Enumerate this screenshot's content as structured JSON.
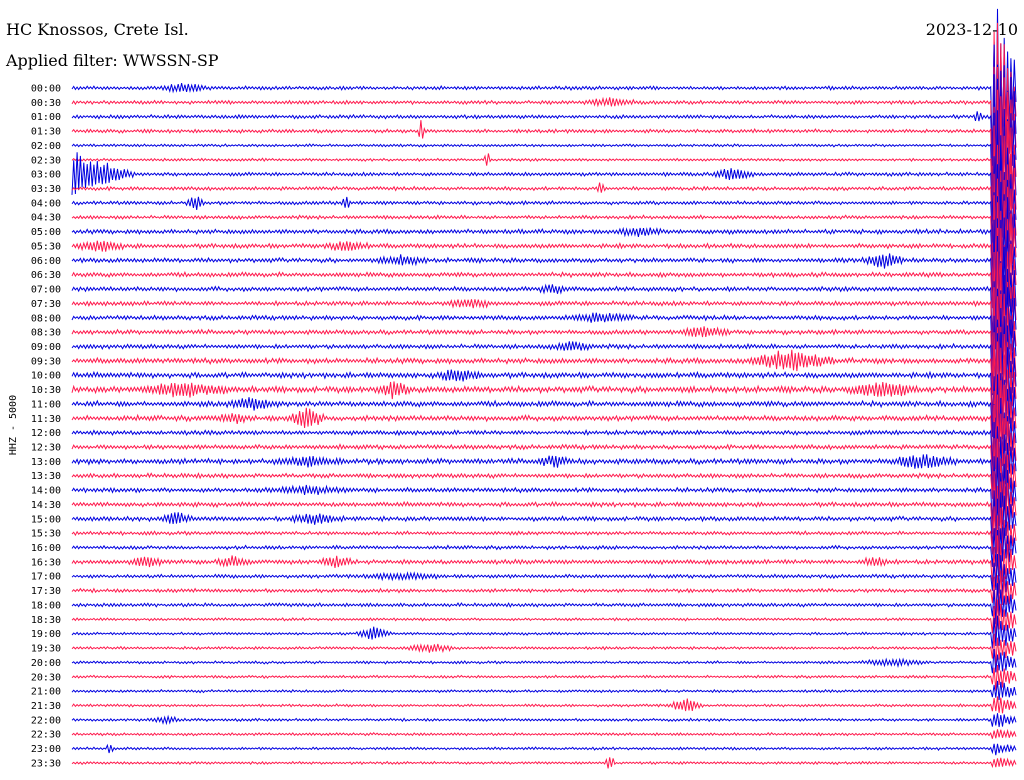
{
  "header": {
    "station": "HC Knossos, Crete Isl.",
    "filter": "Applied filter: WWSSN-SP",
    "date": "2023-12-10"
  },
  "chart_data": {
    "type": "line",
    "title": "",
    "ylabel": "HHZ - 5000",
    "colors": [
      "#0000e0",
      "#ff1a4d"
    ],
    "times": [
      "00:00",
      "00:30",
      "01:00",
      "01:30",
      "02:00",
      "02:30",
      "03:00",
      "03:30",
      "04:00",
      "04:30",
      "05:00",
      "05:30",
      "06:00",
      "06:30",
      "07:00",
      "07:30",
      "08:00",
      "08:30",
      "09:00",
      "09:30",
      "10:00",
      "10:30",
      "11:00",
      "11:30",
      "12:00",
      "12:30",
      "13:00",
      "13:30",
      "14:00",
      "14:30",
      "15:00",
      "15:30",
      "16:00",
      "16:30",
      "17:00",
      "17:30",
      "18:00",
      "18:30",
      "19:00",
      "19:30",
      "20:00",
      "20:30",
      "21:00",
      "21:30",
      "22:00",
      "22:30",
      "23:00",
      "23:30"
    ],
    "noise": [
      2,
      2,
      2,
      2,
      1.5,
      1.5,
      2,
      2,
      2,
      2,
      2.5,
      2.5,
      2.5,
      2.5,
      2.5,
      2.5,
      2.5,
      2.5,
      2.5,
      3,
      3,
      3.5,
      3,
      3,
      2.5,
      2.5,
      3,
      2.5,
      2.5,
      2.5,
      2.5,
      2,
      2,
      2.5,
      2,
      2,
      2,
      1.5,
      1.5,
      1.5,
      1.5,
      1.5,
      1.5,
      1.5,
      1.5,
      1.5,
      1.5,
      1.5
    ],
    "events": [
      {
        "row": 0,
        "t": 0.12,
        "amp": 4,
        "dur": 0.03
      },
      {
        "row": 1,
        "t": 0.57,
        "amp": 4,
        "dur": 0.03
      },
      {
        "row": 2,
        "t": 0.96,
        "amp": 8,
        "dur": 0.005
      },
      {
        "row": 3,
        "t": 0.37,
        "amp": 12,
        "dur": 0.004
      },
      {
        "row": 5,
        "t": 0.44,
        "amp": 8,
        "dur": 0.004
      },
      {
        "row": 6,
        "t": 0.0,
        "amp": 22,
        "dur": 0.07
      },
      {
        "row": 6,
        "t": 0.7,
        "amp": 6,
        "dur": 0.025
      },
      {
        "row": 7,
        "t": 0.56,
        "amp": 6,
        "dur": 0.005
      },
      {
        "row": 8,
        "t": 0.13,
        "amp": 8,
        "dur": 0.01
      },
      {
        "row": 8,
        "t": 0.29,
        "amp": 9,
        "dur": 0.005
      },
      {
        "row": 10,
        "t": 0.6,
        "amp": 4,
        "dur": 0.03
      },
      {
        "row": 11,
        "t": 0.03,
        "amp": 5,
        "dur": 0.03
      },
      {
        "row": 11,
        "t": 0.29,
        "amp": 4,
        "dur": 0.03
      },
      {
        "row": 12,
        "t": 0.35,
        "amp": 4,
        "dur": 0.03
      },
      {
        "row": 12,
        "t": 0.86,
        "amp": 7,
        "dur": 0.025
      },
      {
        "row": 14,
        "t": 0.51,
        "amp": 4,
        "dur": 0.02
      },
      {
        "row": 15,
        "t": 0.42,
        "amp": 4,
        "dur": 0.03
      },
      {
        "row": 16,
        "t": 0.56,
        "amp": 4,
        "dur": 0.04
      },
      {
        "row": 17,
        "t": 0.67,
        "amp": 5,
        "dur": 0.03
      },
      {
        "row": 18,
        "t": 0.53,
        "amp": 4,
        "dur": 0.025
      },
      {
        "row": 19,
        "t": 0.76,
        "amp": 10,
        "dur": 0.05
      },
      {
        "row": 20,
        "t": 0.41,
        "amp": 5,
        "dur": 0.03
      },
      {
        "row": 21,
        "t": 0.12,
        "amp": 7,
        "dur": 0.05
      },
      {
        "row": 21,
        "t": 0.34,
        "amp": 7,
        "dur": 0.02
      },
      {
        "row": 21,
        "t": 0.86,
        "amp": 7,
        "dur": 0.04
      },
      {
        "row": 22,
        "t": 0.19,
        "amp": 5,
        "dur": 0.03
      },
      {
        "row": 23,
        "t": 0.25,
        "amp": 10,
        "dur": 0.02
      },
      {
        "row": 23,
        "t": 0.17,
        "amp": 4,
        "dur": 0.02
      },
      {
        "row": 26,
        "t": 0.25,
        "amp": 4,
        "dur": 0.04
      },
      {
        "row": 26,
        "t": 0.51,
        "amp": 5,
        "dur": 0.02
      },
      {
        "row": 26,
        "t": 0.9,
        "amp": 6,
        "dur": 0.04
      },
      {
        "row": 28,
        "t": 0.25,
        "amp": 3,
        "dur": 0.05
      },
      {
        "row": 30,
        "t": 0.11,
        "amp": 6,
        "dur": 0.02
      },
      {
        "row": 30,
        "t": 0.26,
        "amp": 5,
        "dur": 0.03
      },
      {
        "row": 33,
        "t": 0.08,
        "amp": 5,
        "dur": 0.02
      },
      {
        "row": 33,
        "t": 0.17,
        "amp": 5,
        "dur": 0.02
      },
      {
        "row": 33,
        "t": 0.28,
        "amp": 5,
        "dur": 0.02
      },
      {
        "row": 33,
        "t": 0.85,
        "amp": 4,
        "dur": 0.02
      },
      {
        "row": 34,
        "t": 0.35,
        "amp": 3,
        "dur": 0.05
      },
      {
        "row": 38,
        "t": 0.32,
        "amp": 6,
        "dur": 0.02
      },
      {
        "row": 39,
        "t": 0.38,
        "amp": 4,
        "dur": 0.03
      },
      {
        "row": 40,
        "t": 0.87,
        "amp": 3,
        "dur": 0.04
      },
      {
        "row": 43,
        "t": 0.65,
        "amp": 7,
        "dur": 0.02
      },
      {
        "row": 44,
        "t": 0.1,
        "amp": 3,
        "dur": 0.02
      },
      {
        "row": 46,
        "t": 0.04,
        "amp": 6,
        "dur": 0.004
      },
      {
        "row": 47,
        "t": 0.57,
        "amp": 8,
        "dur": 0.006
      }
    ],
    "large_event": {
      "t": 0.978,
      "amp": 90
    }
  }
}
